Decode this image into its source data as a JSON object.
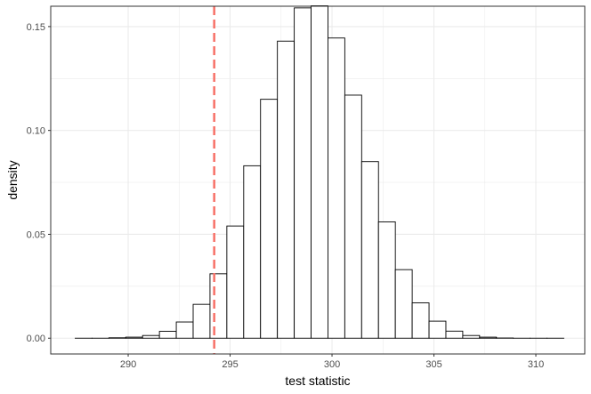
{
  "chart_data": {
    "type": "bar",
    "title": "",
    "xlabel": "test statistic",
    "ylabel": "density",
    "xlim": [
      286.2,
      312.4
    ],
    "ylim": [
      -0.0076,
      0.1598
    ],
    "xticks": [
      290,
      295,
      300,
      305,
      310
    ],
    "xtick_labels": [
      "290",
      "295",
      "300",
      "305",
      "310"
    ],
    "yticks": [
      0,
      0.05,
      0.1,
      0.15
    ],
    "ytick_labels": [
      "0.00",
      "0.05",
      "0.10",
      "0.15"
    ],
    "grid": true,
    "bin_width": 0.8267,
    "bins": [
      {
        "x0": 287.4,
        "density": 0.0
      },
      {
        "x0": 288.227,
        "density": 0.0
      },
      {
        "x0": 289.053,
        "density": 0.0002
      },
      {
        "x0": 289.88,
        "density": 0.0005
      },
      {
        "x0": 290.707,
        "density": 0.0013
      },
      {
        "x0": 291.533,
        "density": 0.0033
      },
      {
        "x0": 292.36,
        "density": 0.0078
      },
      {
        "x0": 293.187,
        "density": 0.0163
      },
      {
        "x0": 294.013,
        "density": 0.031
      },
      {
        "x0": 294.84,
        "density": 0.054
      },
      {
        "x0": 295.667,
        "density": 0.083
      },
      {
        "x0": 296.493,
        "density": 0.115
      },
      {
        "x0": 297.32,
        "density": 0.143
      },
      {
        "x0": 298.147,
        "density": 0.159
      },
      {
        "x0": 298.973,
        "density": 0.16
      },
      {
        "x0": 299.8,
        "density": 0.1445
      },
      {
        "x0": 300.627,
        "density": 0.117
      },
      {
        "x0": 301.453,
        "density": 0.085
      },
      {
        "x0": 302.28,
        "density": 0.056
      },
      {
        "x0": 303.107,
        "density": 0.033
      },
      {
        "x0": 303.933,
        "density": 0.017
      },
      {
        "x0": 304.76,
        "density": 0.0082
      },
      {
        "x0": 305.587,
        "density": 0.0034
      },
      {
        "x0": 306.413,
        "density": 0.0013
      },
      {
        "x0": 307.24,
        "density": 0.0005
      },
      {
        "x0": 308.067,
        "density": 0.0001
      },
      {
        "x0": 308.893,
        "density": 0.0
      },
      {
        "x0": 309.72,
        "density": 0.0
      },
      {
        "x0": 310.547,
        "density": 0.0
      }
    ],
    "reference_line": {
      "x": 294.22,
      "color": "#f8766d",
      "style": "dashed"
    },
    "colors": {
      "bar_fill": "#ffffff",
      "bar_stroke": "#000000",
      "grid": "#ebebeb",
      "panel_border": "#333333"
    }
  }
}
